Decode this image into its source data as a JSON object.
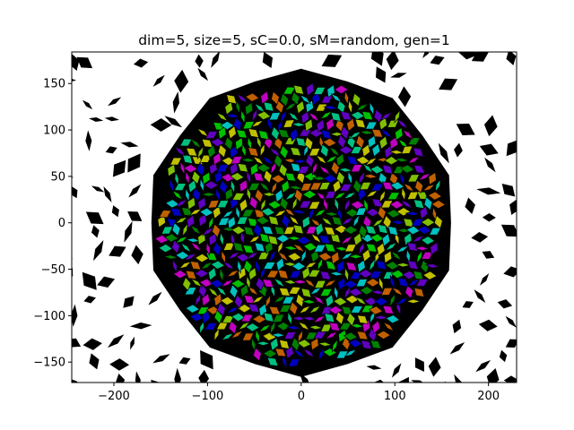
{
  "chart_data": {
    "type": "scatter",
    "title": "dim=5, size=5, sC=0.0, sM=random, gen=1",
    "xlabel": "",
    "ylabel": "",
    "xlim": [
      -245,
      230
    ],
    "ylim": [
      -172,
      184
    ],
    "xticks": [
      -200,
      -100,
      0,
      100,
      200
    ],
    "yticks": [
      -150,
      -100,
      -50,
      0,
      50,
      100,
      150
    ],
    "xtick_labels": [
      "−200",
      "−100",
      "0",
      "100",
      "200"
    ],
    "ytick_labels": [
      "−150",
      "−100",
      "−50",
      "0",
      "50",
      "100",
      "150"
    ],
    "grid": false,
    "tiling": {
      "description_free": true,
      "center": [
        0,
        0
      ],
      "colored_region_radius": 150,
      "black_ring_outer_radius": 162,
      "tile_spacing": 11,
      "outer_tile_spacing": 26,
      "tile_colors": [
        "#00c000",
        "#c0c000",
        "#00c0c0",
        "#0000c0",
        "#c000c0",
        "#008000",
        "#80c000",
        "#6000c0",
        "#00c080",
        "#c06000"
      ],
      "outer_tile_color": "#000000",
      "edge_color": "#000000"
    }
  }
}
